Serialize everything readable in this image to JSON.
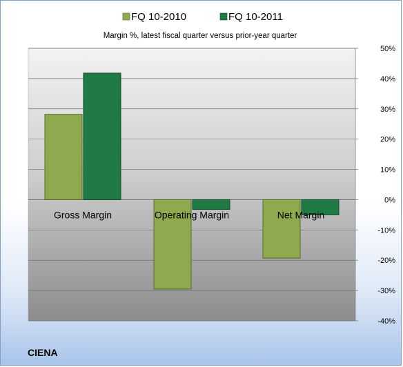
{
  "chart_data": {
    "type": "bar",
    "subtitle": "Margin %,  latest fiscal quarter versus prior-year quarter",
    "categories": [
      "Gross Margin",
      "Operating Margin",
      "Net Margin"
    ],
    "series": [
      {
        "name": "FQ 10-2010",
        "values": [
          28.2,
          -29.5,
          -19.3
        ],
        "color": "#8faa4e"
      },
      {
        "name": "FQ 10-2011",
        "values": [
          41.8,
          -3.2,
          -5.0
        ],
        "color": "#1f7a45"
      }
    ],
    "ylim": [
      -40,
      50
    ],
    "yticks": [
      50,
      40,
      30,
      20,
      10,
      0,
      -10,
      -20,
      -30,
      -40
    ],
    "ytick_labels": [
      "50%",
      "40%",
      "30%",
      "20%",
      "10%",
      "0%",
      "-10%",
      "-20%",
      "-30%",
      "-40%"
    ],
    "y_axis_position": "right",
    "legend_position": "top",
    "grid": true
  },
  "company_label": "CIENA"
}
